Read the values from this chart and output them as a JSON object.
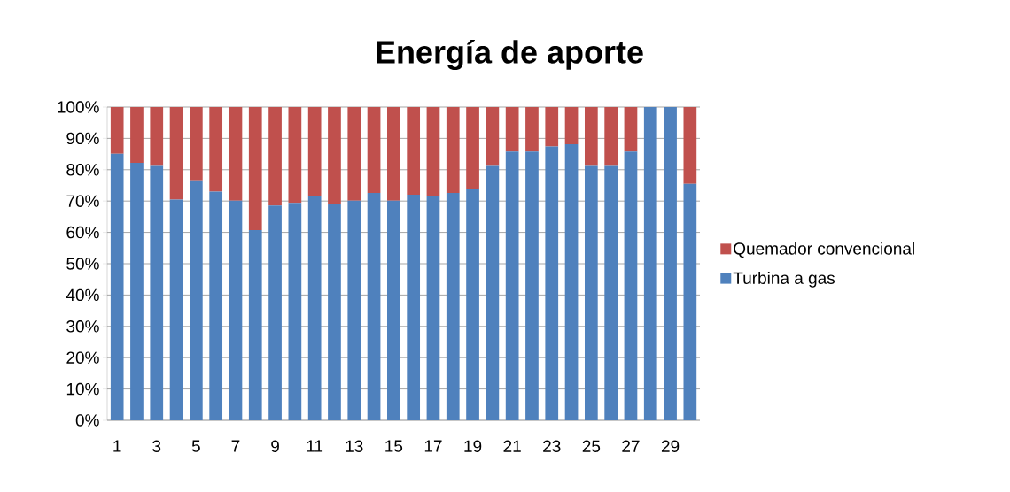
{
  "chart_data": {
    "type": "bar",
    "title": "Energía de aporte",
    "stacked": true,
    "categories": [
      "1",
      null,
      "3",
      null,
      "5",
      null,
      "7",
      null,
      "9",
      null,
      "11",
      null,
      "13",
      null,
      "15",
      null,
      "17",
      null,
      "19",
      null,
      "21",
      null,
      "23",
      null,
      "25",
      null,
      "27",
      null,
      "29",
      null
    ],
    "series": [
      {
        "name": "Turbina a gas",
        "color": "#4f81bd",
        "values": [
          85.1,
          82.2,
          81.2,
          70.5,
          76.6,
          73.0,
          70.1,
          60.7,
          68.6,
          69.4,
          71.5,
          69.0,
          70.1,
          72.6,
          70.1,
          72.0,
          71.5,
          72.6,
          73.7,
          81.2,
          85.8,
          85.8,
          87.4,
          88.1,
          81.2,
          81.2,
          85.8,
          100,
          100,
          75.5
        ]
      },
      {
        "name": "Quemador convencional",
        "color": "#c0504d",
        "values": [
          14.9,
          17.8,
          18.8,
          29.5,
          23.4,
          27.0,
          29.9,
          39.3,
          31.4,
          30.6,
          28.5,
          31.0,
          29.9,
          27.4,
          29.9,
          28.0,
          28.5,
          27.4,
          26.3,
          18.8,
          14.2,
          14.2,
          12.6,
          11.9,
          18.8,
          18.8,
          14.2,
          0,
          0,
          24.5
        ]
      }
    ],
    "ylim": [
      0,
      100
    ],
    "yticks": [
      {
        "value": 0,
        "label": "0%"
      },
      {
        "value": 10,
        "label": "10%"
      },
      {
        "value": 20,
        "label": "20%"
      },
      {
        "value": 30,
        "label": "30%"
      },
      {
        "value": 40,
        "label": "40%"
      },
      {
        "value": 50,
        "label": "50%"
      },
      {
        "value": 60,
        "label": "60%"
      },
      {
        "value": 70,
        "label": "70%"
      },
      {
        "value": 80,
        "label": "80%"
      },
      {
        "value": 90,
        "label": "90%"
      },
      {
        "value": 100,
        "label": "100%"
      }
    ],
    "grid": "y",
    "legend": "right"
  }
}
